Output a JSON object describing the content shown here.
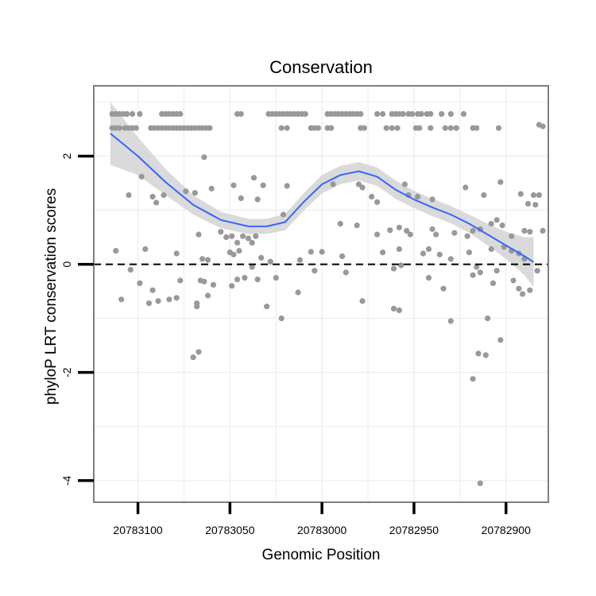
{
  "chart_data": {
    "type": "scatter",
    "title": "Conservation",
    "xlabel": "Genomic Position",
    "ylabel": "phyloP LRT conservation scores",
    "x_reversed": true,
    "xlim": [
      20783124,
      20782877
    ],
    "ylim": [
      -4.4,
      3.3
    ],
    "x_ticks": [
      20783100,
      20783050,
      20783000,
      20782950,
      20782900
    ],
    "x_tick_labels": [
      "20783100",
      "20783050",
      "20783000",
      "20782950",
      "20782900"
    ],
    "y_ticks": [
      -4,
      -2,
      0,
      2
    ],
    "y_tick_labels": [
      "-4",
      "-2",
      "0",
      "2"
    ],
    "reference_line": {
      "y": 0,
      "style": "dashed",
      "color": "#000000"
    },
    "colors": {
      "points": "#999999",
      "smooth": "#3366ff",
      "ribbon": "#d3d3d3",
      "grid": "#f0f0f0",
      "border": "#7f7f7f"
    },
    "series": [
      {
        "name": "scores",
        "kind": "points",
        "points": [
          [
            20783114,
            2.78
          ],
          [
            20783112,
            2.78
          ],
          [
            20783110,
            2.78
          ],
          [
            20783108,
            2.78
          ],
          [
            20783106,
            2.78
          ],
          [
            20783103,
            2.78
          ],
          [
            20783099,
            2.78
          ],
          [
            20783087,
            2.78
          ],
          [
            20783085,
            2.78
          ],
          [
            20783083,
            2.78
          ],
          [
            20783081,
            2.78
          ],
          [
            20783079,
            2.78
          ],
          [
            20783077,
            2.78
          ],
          [
            20783046,
            2.78
          ],
          [
            20783044,
            2.78
          ],
          [
            20783029,
            2.78
          ],
          [
            20783027,
            2.78
          ],
          [
            20783025,
            2.78
          ],
          [
            20783023,
            2.78
          ],
          [
            20783021,
            2.78
          ],
          [
            20783019,
            2.78
          ],
          [
            20783017,
            2.78
          ],
          [
            20783015,
            2.78
          ],
          [
            20783013,
            2.78
          ],
          [
            20783011,
            2.78
          ],
          [
            20783009,
            2.78
          ],
          [
            20782997,
            2.78
          ],
          [
            20782995,
            2.78
          ],
          [
            20782993,
            2.78
          ],
          [
            20782991,
            2.78
          ],
          [
            20782989,
            2.78
          ],
          [
            20782987,
            2.78
          ],
          [
            20782985,
            2.78
          ],
          [
            20782983,
            2.78
          ],
          [
            20782981,
            2.78
          ],
          [
            20782979,
            2.78
          ],
          [
            20782970,
            2.78
          ],
          [
            20782967,
            2.78
          ],
          [
            20782962,
            2.78
          ],
          [
            20782960,
            2.78
          ],
          [
            20782958,
            2.78
          ],
          [
            20782956,
            2.78
          ],
          [
            20782953,
            2.78
          ],
          [
            20782951,
            2.78
          ],
          [
            20782948,
            2.78
          ],
          [
            20782946,
            2.78
          ],
          [
            20782943,
            2.78
          ],
          [
            20782941,
            2.78
          ],
          [
            20782935,
            2.78
          ],
          [
            20782930,
            2.78
          ],
          [
            20782923,
            2.78
          ],
          [
            20783114,
            2.52
          ],
          [
            20783112,
            2.52
          ],
          [
            20783110,
            2.52
          ],
          [
            20783107,
            2.52
          ],
          [
            20783105,
            2.52
          ],
          [
            20783103,
            2.52
          ],
          [
            20783101,
            2.52
          ],
          [
            20783093,
            2.52
          ],
          [
            20783091,
            2.52
          ],
          [
            20783089,
            2.52
          ],
          [
            20783087,
            2.52
          ],
          [
            20783085,
            2.52
          ],
          [
            20783083,
            2.52
          ],
          [
            20783081,
            2.52
          ],
          [
            20783079,
            2.52
          ],
          [
            20783077,
            2.52
          ],
          [
            20783075,
            2.52
          ],
          [
            20783073,
            2.52
          ],
          [
            20783071,
            2.52
          ],
          [
            20783069,
            2.52
          ],
          [
            20783067,
            2.52
          ],
          [
            20783065,
            2.52
          ],
          [
            20783063,
            2.52
          ],
          [
            20783061,
            2.52
          ],
          [
            20783022,
            2.52
          ],
          [
            20783019,
            2.52
          ],
          [
            20783006,
            2.52
          ],
          [
            20783004,
            2.52
          ],
          [
            20783002,
            2.52
          ],
          [
            20782997,
            2.52
          ],
          [
            20782995,
            2.52
          ],
          [
            20782979,
            2.52
          ],
          [
            20782977,
            2.52
          ],
          [
            20782965,
            2.52
          ],
          [
            20782962,
            2.52
          ],
          [
            20782959,
            2.52
          ],
          [
            20782949,
            2.52
          ],
          [
            20782947,
            2.52
          ],
          [
            20782941,
            2.52
          ],
          [
            20782933,
            2.52
          ],
          [
            20782930,
            2.52
          ],
          [
            20782927,
            2.52
          ],
          [
            20782918,
            2.52
          ],
          [
            20782916,
            2.52
          ],
          [
            20782904,
            2.52
          ],
          [
            20782882,
            2.58
          ],
          [
            20782880,
            2.55
          ],
          [
            20783064,
            1.98
          ],
          [
            20783074,
            1.35
          ],
          [
            20783069,
            1.32
          ],
          [
            20783105,
            1.28
          ],
          [
            20783092,
            1.25
          ],
          [
            20783086,
            1.28
          ],
          [
            20783060,
            1.4
          ],
          [
            20783037,
            1.6
          ],
          [
            20783019,
            1.45
          ],
          [
            20782994,
            1.48
          ],
          [
            20782978,
            1.42
          ],
          [
            20782973,
            1.25
          ],
          [
            20782980,
            1.48
          ],
          [
            20782970,
            1.15
          ],
          [
            20782955,
            1.48
          ],
          [
            20782953,
            1.28
          ],
          [
            20782948,
            1.25
          ],
          [
            20782940,
            1.2
          ],
          [
            20782922,
            1.42
          ],
          [
            20782912,
            1.28
          ],
          [
            20782903,
            1.52
          ],
          [
            20782892,
            1.3
          ],
          [
            20782885,
            1.28
          ],
          [
            20782882,
            1.28
          ],
          [
            20782888,
            1.12
          ],
          [
            20782884,
            1.1
          ],
          [
            20783090,
            1.14
          ],
          [
            20783098,
            1.62
          ],
          [
            20783032,
            1.46
          ],
          [
            20783035,
            1.2
          ],
          [
            20783048,
            1.46
          ],
          [
            20783044,
            1.22
          ],
          [
            20783067,
            0.55
          ],
          [
            20783055,
            0.6
          ],
          [
            20783052,
            0.5
          ],
          [
            20783049,
            0.52
          ],
          [
            20783046,
            0.4
          ],
          [
            20783043,
            0.52
          ],
          [
            20783040,
            0.48
          ],
          [
            20783036,
            0.52
          ],
          [
            20783038,
            0.4
          ],
          [
            20783021,
            0.92
          ],
          [
            20782990,
            0.75
          ],
          [
            20782981,
            0.72
          ],
          [
            20782970,
            0.55
          ],
          [
            20782963,
            0.63
          ],
          [
            20782958,
            0.68
          ],
          [
            20782954,
            0.62
          ],
          [
            20782952,
            0.55
          ],
          [
            20782940,
            0.65
          ],
          [
            20782938,
            0.55
          ],
          [
            20782928,
            0.58
          ],
          [
            20782921,
            0.52
          ],
          [
            20782918,
            0.62
          ],
          [
            20782914,
            0.65
          ],
          [
            20782908,
            0.75
          ],
          [
            20782905,
            0.82
          ],
          [
            20782902,
            0.72
          ],
          [
            20782897,
            0.52
          ],
          [
            20782887,
            0.6
          ],
          [
            20782890,
            0.62
          ],
          [
            20782880,
            0.62
          ],
          [
            20783112,
            0.25
          ],
          [
            20783096,
            0.28
          ],
          [
            20783079,
            0.2
          ],
          [
            20783065,
            0.1
          ],
          [
            20783062,
            0.08
          ],
          [
            20783050,
            0.22
          ],
          [
            20783048,
            0.18
          ],
          [
            20783045,
            0.25
          ],
          [
            20783033,
            0.12
          ],
          [
            20783028,
            0.05
          ],
          [
            20783012,
            0.08
          ],
          [
            20783006,
            0.23
          ],
          [
            20783000,
            0.23
          ],
          [
            20782989,
            0.15
          ],
          [
            20782967,
            0.22
          ],
          [
            20782958,
            0.28
          ],
          [
            20782945,
            0.2
          ],
          [
            20782942,
            0.28
          ],
          [
            20782936,
            0.18
          ],
          [
            20782930,
            0.1
          ],
          [
            20782920,
            0.22
          ],
          [
            20782908,
            0.28
          ],
          [
            20782901,
            0.32
          ],
          [
            20782897,
            0.25
          ],
          [
            20782893,
            0.2
          ],
          [
            20782890,
            0.1
          ],
          [
            20783104,
            -0.1
          ],
          [
            20783099,
            -0.35
          ],
          [
            20783092,
            -0.48
          ],
          [
            20783089,
            -0.68
          ],
          [
            20783077,
            -0.3
          ],
          [
            20783068,
            -0.78
          ],
          [
            20783066,
            -0.3
          ],
          [
            20783064,
            -0.32
          ],
          [
            20783062,
            -0.58
          ],
          [
            20783059,
            -0.38
          ],
          [
            20783049,
            -0.4
          ],
          [
            20783046,
            -0.28
          ],
          [
            20783042,
            -0.25
          ],
          [
            20783038,
            -0.05
          ],
          [
            20783035,
            -0.28
          ],
          [
            20783030,
            -0.78
          ],
          [
            20783025,
            -0.25
          ],
          [
            20783013,
            -0.52
          ],
          [
            20783004,
            -0.12
          ],
          [
            20782987,
            -0.15
          ],
          [
            20782978,
            -0.68
          ],
          [
            20782961,
            -0.08
          ],
          [
            20782957,
            -0.02
          ],
          [
            20782942,
            -0.25
          ],
          [
            20782934,
            -0.45
          ],
          [
            20782918,
            -0.2
          ],
          [
            20782916,
            -0.05
          ],
          [
            20782914,
            -0.15
          ],
          [
            20782907,
            -0.35
          ],
          [
            20782905,
            -0.12
          ],
          [
            20782896,
            -0.3
          ],
          [
            20782893,
            -0.45
          ],
          [
            20782891,
            -0.55
          ],
          [
            20782887,
            -0.48
          ],
          [
            20782883,
            -0.12
          ],
          [
            20783109,
            -0.65
          ],
          [
            20783094,
            -0.72
          ],
          [
            20783083,
            -0.65
          ],
          [
            20783068,
            -0.72
          ],
          [
            20783067,
            -1.62
          ],
          [
            20783070,
            -1.72
          ],
          [
            20783022,
            -1.0
          ],
          [
            20782958,
            -0.85
          ],
          [
            20782961,
            -0.82
          ],
          [
            20782930,
            -1.05
          ],
          [
            20782910,
            -1.0
          ],
          [
            20782911,
            -1.68
          ],
          [
            20782903,
            -1.4
          ],
          [
            20782915,
            -1.65
          ],
          [
            20782918,
            -2.12
          ],
          [
            20782914,
            -4.05
          ],
          [
            20783079,
            -0.62
          ]
        ]
      },
      {
        "name": "loess smooth",
        "kind": "line",
        "x": [
          20783115,
          20783100,
          20783085,
          20783070,
          20783055,
          20783040,
          20783030,
          20783020,
          20783010,
          20783000,
          20782990,
          20782980,
          20782970,
          20782960,
          20782950,
          20782940,
          20782930,
          20782920,
          20782910,
          20782900,
          20782890,
          20782885
        ],
        "y": [
          2.42,
          2.0,
          1.52,
          1.1,
          0.82,
          0.7,
          0.7,
          0.78,
          1.15,
          1.48,
          1.65,
          1.72,
          1.62,
          1.38,
          1.2,
          1.05,
          0.92,
          0.75,
          0.55,
          0.35,
          0.15,
          0.04
        ],
        "band_width": [
          0.58,
          0.35,
          0.24,
          0.18,
          0.15,
          0.14,
          0.14,
          0.15,
          0.16,
          0.17,
          0.17,
          0.17,
          0.17,
          0.17,
          0.16,
          0.16,
          0.16,
          0.17,
          0.2,
          0.25,
          0.35,
          0.46
        ]
      }
    ]
  }
}
